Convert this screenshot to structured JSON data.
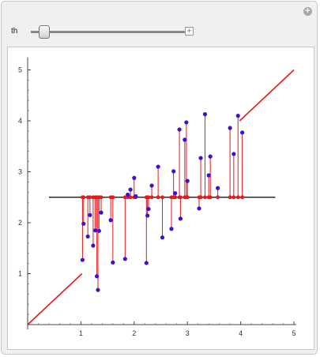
{
  "control": {
    "label": "th",
    "value_fraction": 0.04
  },
  "chart_data": {
    "type": "scatter",
    "title": "",
    "xlabel": "",
    "ylabel": "",
    "xlim": [
      0,
      5
    ],
    "ylim": [
      0,
      5
    ],
    "x_ticks": [
      "1",
      "2",
      "3",
      "4",
      "5"
    ],
    "y_ticks": [
      "1",
      "2",
      "3",
      "4",
      "5"
    ],
    "threshold_line": {
      "x": [
        0.4,
        4.65
      ],
      "y": 2.5
    },
    "diagonal_segments": [
      {
        "x": [
          0,
          1.02
        ],
        "y": [
          0,
          1.0
        ]
      },
      {
        "x": [
          3.98,
          5
        ],
        "y": [
          4.0,
          5.0
        ]
      }
    ],
    "points": [
      {
        "x": 1.03,
        "y": 1.27
      },
      {
        "x": 1.05,
        "y": 1.98
      },
      {
        "x": 1.13,
        "y": 1.73
      },
      {
        "x": 1.17,
        "y": 2.15
      },
      {
        "x": 1.23,
        "y": 1.55
      },
      {
        "x": 1.27,
        "y": 1.85
      },
      {
        "x": 1.3,
        "y": 0.95
      },
      {
        "x": 1.32,
        "y": 0.68
      },
      {
        "x": 1.34,
        "y": 1.84
      },
      {
        "x": 1.38,
        "y": 2.2
      },
      {
        "x": 1.56,
        "y": 2.05
      },
      {
        "x": 1.6,
        "y": 1.22
      },
      {
        "x": 1.83,
        "y": 1.29
      },
      {
        "x": 1.88,
        "y": 2.55
      },
      {
        "x": 1.93,
        "y": 2.65
      },
      {
        "x": 2.0,
        "y": 2.88
      },
      {
        "x": 2.03,
        "y": 2.52
      },
      {
        "x": 2.23,
        "y": 1.21
      },
      {
        "x": 2.25,
        "y": 2.14
      },
      {
        "x": 2.27,
        "y": 2.27
      },
      {
        "x": 2.33,
        "y": 2.73
      },
      {
        "x": 2.45,
        "y": 3.1
      },
      {
        "x": 2.53,
        "y": 1.71
      },
      {
        "x": 2.7,
        "y": 1.88
      },
      {
        "x": 2.74,
        "y": 3.01
      },
      {
        "x": 2.77,
        "y": 2.58
      },
      {
        "x": 2.85,
        "y": 3.83
      },
      {
        "x": 2.87,
        "y": 2.08
      },
      {
        "x": 2.95,
        "y": 3.63
      },
      {
        "x": 2.98,
        "y": 3.97
      },
      {
        "x": 3.0,
        "y": 2.82
      },
      {
        "x": 3.22,
        "y": 2.28
      },
      {
        "x": 3.25,
        "y": 3.27
      },
      {
        "x": 3.33,
        "y": 4.13
      },
      {
        "x": 3.4,
        "y": 2.93
      },
      {
        "x": 3.43,
        "y": 3.3
      },
      {
        "x": 3.57,
        "y": 2.68
      },
      {
        "x": 3.8,
        "y": 3.86
      },
      {
        "x": 3.87,
        "y": 3.35
      },
      {
        "x": 3.95,
        "y": 4.1
      },
      {
        "x": 4.03,
        "y": 3.77
      }
    ],
    "colors": {
      "points": "#3a0fd8",
      "stems": "#e6191c",
      "threshold": "#000000",
      "diagonal": "#e6191c"
    }
  }
}
